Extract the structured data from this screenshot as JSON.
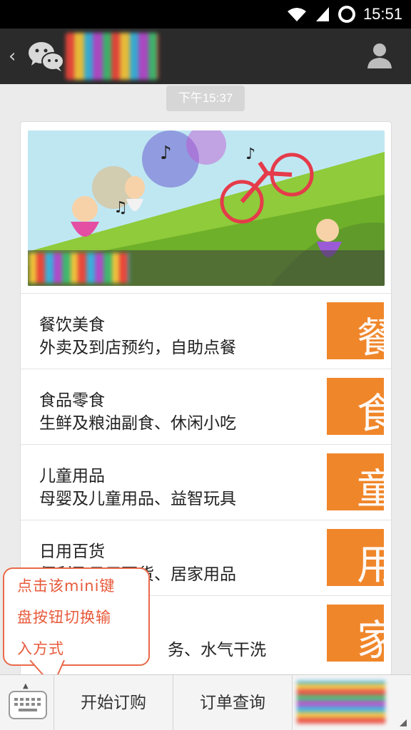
{
  "status_bar": {
    "time": "15:51",
    "icons": [
      "wifi-icon",
      "signal-icon",
      "sync-ring-icon"
    ]
  },
  "header": {
    "back_icon": "chevron-left-icon",
    "app_icon": "wechat-logo-icon",
    "profile_icon": "profile-icon"
  },
  "chat": {
    "timestamp": "下午15:37"
  },
  "menu": {
    "items": [
      {
        "title": "餐饮美食",
        "subtitle": "外卖及到店预约，自助点餐",
        "thumb": "餐"
      },
      {
        "title": "食品零食",
        "subtitle": "生鲜及粮油副食、休闲小吃",
        "thumb": "食"
      },
      {
        "title": "儿童用品",
        "subtitle": "母婴及儿童用品、益智玩具",
        "thumb": "童"
      },
      {
        "title": "日用百货",
        "subtitle": "便利及日用百货、居家用品",
        "thumb": "用"
      },
      {
        "title": "",
        "subtitle": "务、水气干洗",
        "thumb": "家"
      }
    ]
  },
  "tooltip": {
    "lines": [
      "点击该mini键",
      "盘按钮切换输",
      "入方式"
    ]
  },
  "bottom_bar": {
    "order_label": "开始订购",
    "query_label": "订单查询"
  },
  "colors": {
    "accent_orange": "#f0862a",
    "tooltip_red": "#e75a3a",
    "header_dark": "#2b2b2b"
  }
}
